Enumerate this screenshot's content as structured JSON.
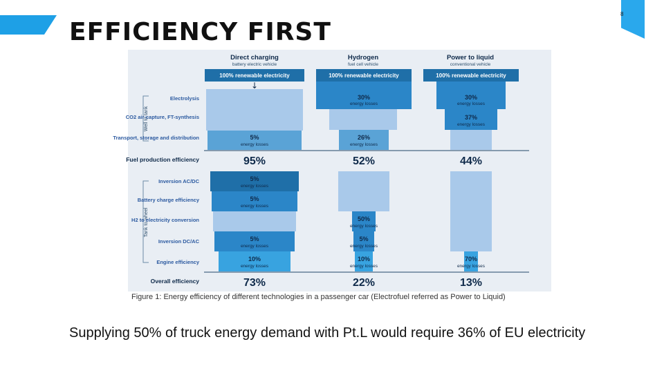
{
  "slide": {
    "title": "EFFICIENCY FIRST",
    "page_number": "8",
    "caption": "Figure 1: Energy efficiency of different technologies in a passenger car (Electrofuel referred as Power to Liquid)",
    "body_text": "Supplying 50% of truck energy demand with Pt.L would require 36% of EU electricity"
  },
  "colors": {
    "dark_blue": "#1f6fa8",
    "mid_blue": "#5aa3d6",
    "light_blue": "#a9c9ea",
    "panel": "#e9eef4",
    "accent": "#1ea0e6"
  },
  "diagram": {
    "columns": [
      {
        "title": "Direct charging",
        "subtitle": "battery electric vehicle",
        "source": "100% renewable electricity",
        "steps": [
          {
            "label": "",
            "sub": ""
          },
          {
            "label": "",
            "sub": ""
          },
          {
            "label": "5%",
            "sub": "energy losses"
          },
          {
            "label": "5%",
            "sub": "energy losses"
          },
          {
            "label": "5%",
            "sub": "energy losses"
          },
          {
            "label": "",
            "sub": ""
          },
          {
            "label": "5%",
            "sub": "energy losses"
          },
          {
            "label": "10%",
            "sub": "energy losses"
          }
        ],
        "fuel_efficiency": "95%",
        "overall_efficiency": "73%"
      },
      {
        "title": "Hydrogen",
        "subtitle": "fuel cell vehicle",
        "source": "100% renewable electricity",
        "steps": [
          {
            "label": "30%",
            "sub": "energy losses"
          },
          {
            "label": "",
            "sub": ""
          },
          {
            "label": "26%",
            "sub": "energy losses"
          },
          {
            "label": "",
            "sub": ""
          },
          {
            "label": "",
            "sub": ""
          },
          {
            "label": "50%",
            "sub": "energy losses"
          },
          {
            "label": "5%",
            "sub": "energy losses"
          },
          {
            "label": "10%",
            "sub": "energy losses"
          }
        ],
        "fuel_efficiency": "52%",
        "overall_efficiency": "22%"
      },
      {
        "title": "Power to liquid",
        "subtitle": "conventional vehicle",
        "source": "100% renewable electricity",
        "steps": [
          {
            "label": "30%",
            "sub": "energy losses"
          },
          {
            "label": "37%",
            "sub": "energy losses"
          },
          {
            "label": "",
            "sub": ""
          },
          {
            "label": "",
            "sub": ""
          },
          {
            "label": "",
            "sub": ""
          },
          {
            "label": "",
            "sub": ""
          },
          {
            "label": "",
            "sub": ""
          },
          {
            "label": "70%",
            "sub": "energy losses"
          }
        ],
        "fuel_efficiency": "44%",
        "overall_efficiency": "13%"
      }
    ],
    "row_labels": [
      "Electrolysis",
      "CO2 air-capture, FT-synthesis",
      "Transport, storage and distribution",
      "Inversion AC/DC",
      "Battery charge efficiency",
      "H2 to electricity conversion",
      "Inversion DC/AC",
      "Engine efficiency"
    ],
    "fuel_label": "Fuel production efficiency",
    "overall_label": "Overall efficiency",
    "well_to_tank": "Well to tank",
    "tank_to_wheel": "Tank to wheel"
  }
}
